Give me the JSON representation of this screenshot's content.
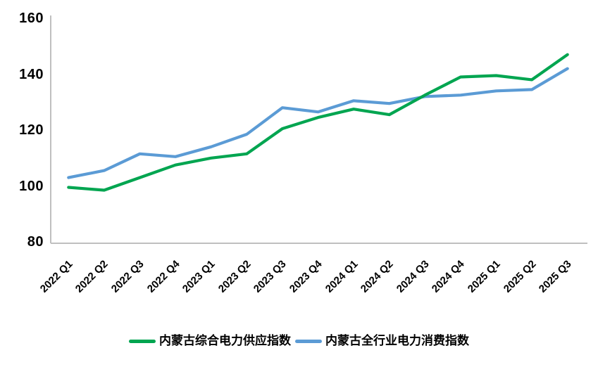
{
  "chart_data": {
    "type": "line",
    "title": "",
    "categories": [
      "2022 Q1",
      "2022 Q2",
      "2022 Q3",
      "2022 Q4",
      "2023 Q1",
      "2023 Q2",
      "2023 Q3",
      "2023 Q4",
      "2024 Q1",
      "2024 Q2",
      "2024 Q3",
      "2024 Q4",
      "2025 Q1",
      "2025 Q2",
      "2025 Q3"
    ],
    "series": [
      {
        "name": "内蒙古综合电力供应指数",
        "color": "#00A550",
        "values": [
          99.5,
          98.5,
          103,
          107.5,
          110,
          111.5,
          120.5,
          124.5,
          127.5,
          125.5,
          132.5,
          139,
          139.5,
          138,
          147
        ]
      },
      {
        "name": "内蒙古全行业电力消费指数",
        "color": "#5B9BD5",
        "values": [
          103,
          105.5,
          111.5,
          110.5,
          114,
          118.5,
          128,
          126.5,
          130.5,
          129.5,
          132,
          132.5,
          134,
          134.5,
          142
        ]
      }
    ],
    "ylim": [
      80,
      160
    ],
    "yticks": [
      80,
      100,
      120,
      140,
      160
    ],
    "grid": false,
    "legend_position": "bottom",
    "axis_color": "#BFBFBF",
    "text_color": "#000000",
    "background": "#FFFFFF"
  }
}
